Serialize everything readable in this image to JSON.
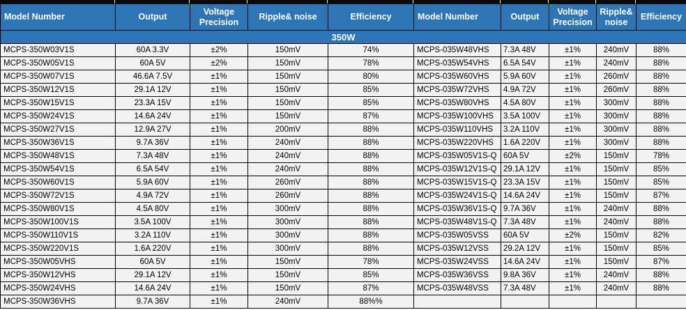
{
  "banner": {
    "label": "350W"
  },
  "colors": {
    "header_blue": "#2E75B6",
    "row_bg": "#F2F2F2",
    "border_black": "#000000",
    "header_text": "#FFFFFF",
    "error_triangle_green": "#21A038"
  },
  "left_table": {
    "headers": [
      "Model Number",
      "Output",
      "Voltage Precision",
      "Ripple&  noise",
      "Efficiency"
    ],
    "rows": [
      [
        "MCPS-350W03V1S",
        "60A 3.3V",
        "±2%",
        "150mV",
        "74%"
      ],
      [
        "MCPS-350W05V1S",
        "60A 5V",
        "±2%",
        "150mV",
        "78%"
      ],
      [
        "MCPS-350W07V1S",
        "46.6A 7.5V",
        "±1%",
        "150mV",
        "80%"
      ],
      [
        "MCPS-350W12V1S",
        "29.1A 12V",
        "±1%",
        "150mV",
        "85%"
      ],
      [
        "MCPS-350W15V1S",
        "23.3A 15V",
        "±1%",
        "150mV",
        "85%"
      ],
      [
        "MCPS-350W24V1S",
        "14.6A 24V",
        "±1%",
        "150mV",
        "87%"
      ],
      [
        "MCPS-350W27V1S",
        "12.9A 27V",
        "±1%",
        "200mV",
        "88%"
      ],
      [
        "MCPS-350W36V1S",
        "9.7A 36V",
        "±1%",
        "240mV",
        "88%"
      ],
      [
        "MCPS-350W48V1S",
        "7.3A 48V",
        "±1%",
        "240mV",
        "88%"
      ],
      [
        "MCPS-350W54V1S",
        "6.5A 54V",
        "±1%",
        "240mV",
        "88%"
      ],
      [
        "MCPS-350W60V1S",
        "5.9A 60V",
        "±1%",
        "260mV",
        "88%"
      ],
      [
        "MCPS-350W72V1S",
        "4.9A 72V",
        "±1%",
        "260mV",
        "88%"
      ],
      [
        "MCPS-350W80V1S",
        "4.5A 80V",
        "±1%",
        "300mV",
        "88%"
      ],
      [
        "MCPS-350W100V1S",
        "3.5A 100V",
        "±1%",
        "300mV",
        "88%"
      ],
      [
        "MCPS-350W110V1S",
        "3.2A 110V",
        "±1%",
        "300mV",
        "88%"
      ],
      [
        "MCPS-350W220V1S",
        "1.6A 220V",
        "±1%",
        "300mV",
        "88%"
      ],
      [
        "MCPS-350W05VHS",
        "60A 5V",
        "±1%",
        "150mV",
        "78%"
      ],
      [
        "MCPS-350W12VHS",
        "29.1A 12V",
        "±1%",
        "150mV",
        "85%"
      ],
      [
        "MCPS-350W24VHS",
        "14.6A 24V",
        "±1%",
        "150mV",
        "87%"
      ],
      [
        "MCPS-350W36VHS",
        "9.7A 36V",
        "±1%",
        "240mV",
        "88%%"
      ]
    ]
  },
  "right_table": {
    "headers": [
      "Model Number",
      "Output",
      "Voltage Precision",
      "Ripple& noise",
      "Efficiency"
    ],
    "rows": [
      [
        "MCPS-035W48VHS",
        "7.3A 48V",
        "±1%",
        "240mV",
        "88%"
      ],
      [
        "MCPS-035W54VHS",
        "6.5A 54V",
        "±1%",
        "240mV",
        "88%"
      ],
      [
        "MCPS-035W60VHS",
        "5.9A 60V",
        "±1%",
        "260mV",
        "88%"
      ],
      [
        "MCPS-035W72VHS",
        "4.9A 72V",
        "±1%",
        "260mV",
        "88%"
      ],
      [
        "MCPS-035W80VHS",
        "4.5A 80V",
        "±1%",
        "300mV",
        "88%"
      ],
      [
        "MCPS-035W100VHS",
        "3.5A 100V",
        "±1%",
        "300mV",
        "88%"
      ],
      [
        "MCPS-035W110VHS",
        "3.2A 110V",
        "±1%",
        "300mV",
        "88%"
      ],
      [
        "MCPS-035W220VHS",
        "1.6A 220V",
        "±1%",
        "300mV",
        "88%"
      ],
      [
        "MCPS-035W05V1S-Q",
        "60A 5V",
        "±2%",
        "150mV",
        "78%"
      ],
      [
        "MCPS-035W12V1S-Q",
        "29.1A 12V",
        "±1%",
        "150mV",
        "85%"
      ],
      [
        "MCPS-035W15V1S-Q",
        "23.3A 15V",
        "±1%",
        "150mV",
        "85%"
      ],
      [
        "MCPS-035W24V1S-Q",
        "14.6A 24V",
        "±1%",
        "150mV",
        "87%"
      ],
      [
        "MCPS-035W36V1S-Q",
        "9.7A 36V",
        "±1%",
        "240mV",
        "88%"
      ],
      [
        "MCPS-035W48V1S-Q",
        "7.3A 48V",
        "±1%",
        "240mV",
        "88%"
      ],
      [
        "MCPS-035W05VSS",
        "60A 5V",
        "±2%",
        "150mV",
        "82%"
      ],
      [
        "MCPS-035W12VSS",
        "29.2A 12V",
        "±1%",
        "150mV",
        "85%"
      ],
      [
        "MCPS-035W24VSS",
        "14.6A 24V",
        "±1%",
        "150mV",
        "87%"
      ],
      [
        "MCPS-035W36VSS",
        "9.8A 36V",
        "±1%",
        "240mV",
        "88%"
      ],
      [
        "MCPS-035W48VSS",
        "7.3A 48V",
        "±1%",
        "240mV",
        "88%"
      ]
    ]
  }
}
